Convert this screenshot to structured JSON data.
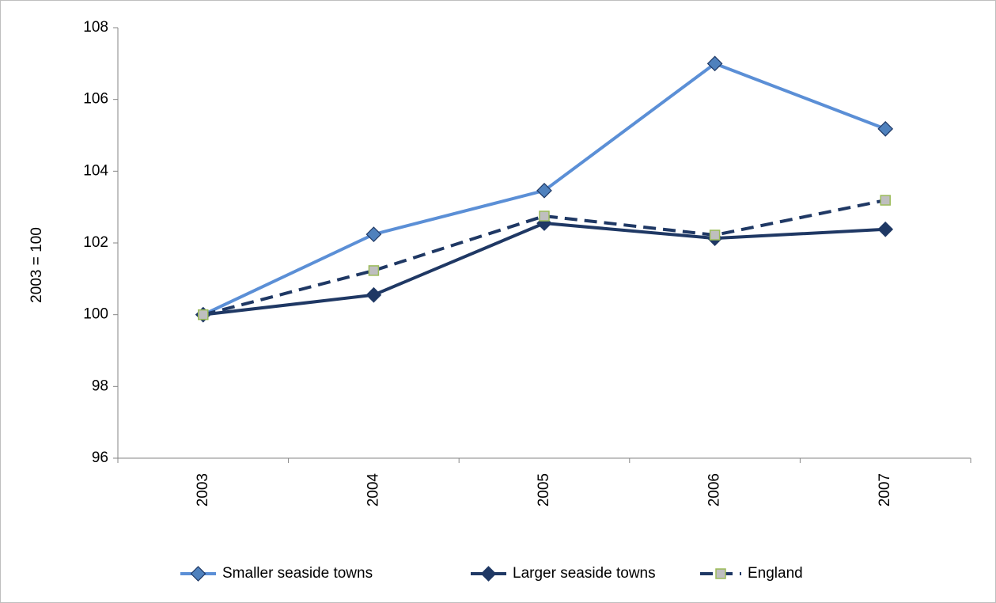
{
  "chart_data": {
    "type": "line",
    "y_label": "2003 = 100",
    "categories": [
      "2003",
      "2004",
      "2005",
      "2006",
      "2007"
    ],
    "series": [
      {
        "name": "Smaller seaside towns",
        "color": "#5b8fd6",
        "marker": "diamond",
        "marker_color": "#4f81bd",
        "dashed": false,
        "values": [
          100,
          102.24,
          103.46,
          107.0,
          105.18
        ]
      },
      {
        "name": "Larger seaside towns",
        "color": "#1f3864",
        "marker": "diamond",
        "marker_color": "#1f3864",
        "dashed": false,
        "values": [
          100,
          100.55,
          102.55,
          102.13,
          102.38
        ]
      },
      {
        "name": "England",
        "color": "#1f3864",
        "marker": "square",
        "marker_color": "#bfbfbf",
        "dashed": true,
        "values": [
          100,
          101.23,
          102.75,
          102.22,
          103.19
        ]
      }
    ],
    "ylim": [
      96,
      108
    ],
    "yticks": [
      96,
      98,
      100,
      102,
      104,
      106,
      108
    ],
    "grid": false,
    "legend": "bottom"
  }
}
